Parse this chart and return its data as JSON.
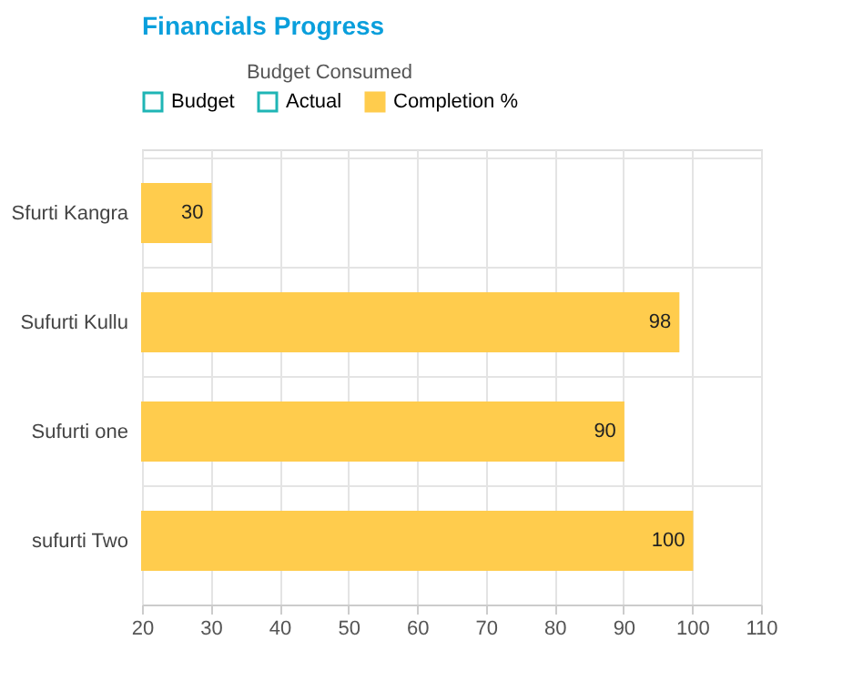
{
  "chart_data": {
    "type": "bar",
    "orientation": "horizontal",
    "title": "Financials Progress",
    "legend_title": "Budget Consumed",
    "categories": [
      "Sfurti Kangra",
      "Sufurti Kullu",
      "Sufurti one",
      "sufurti Two"
    ],
    "series": [
      {
        "name": "Budget",
        "color": "#1fb5b5",
        "values": [
          null,
          null,
          null,
          null
        ]
      },
      {
        "name": "Actual",
        "color": "#1fb5b5",
        "values": [
          null,
          null,
          null,
          null
        ]
      },
      {
        "name": "Completion %",
        "color": "#ffcc4d",
        "values": [
          30,
          98,
          90,
          100
        ]
      }
    ],
    "xlim": [
      20,
      110
    ],
    "xticks": [
      20,
      30,
      40,
      50,
      60,
      70,
      80,
      90,
      100,
      110
    ],
    "grid": true,
    "legend": "top",
    "data_labels": true
  }
}
